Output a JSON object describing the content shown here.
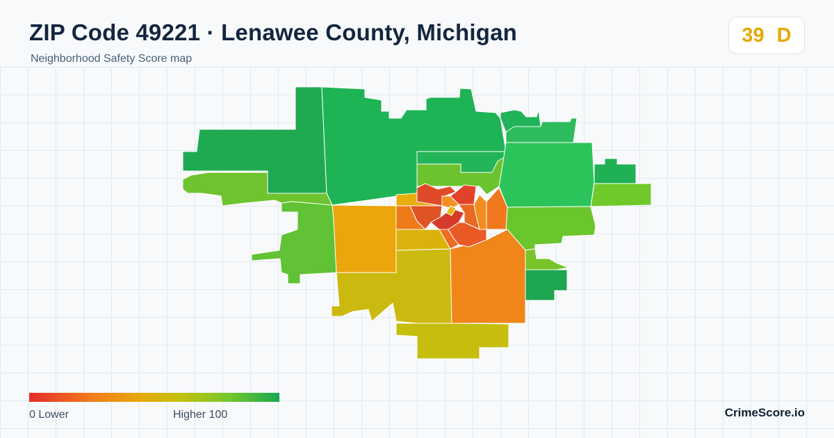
{
  "header": {
    "title": "ZIP Code 49221 · Lenawee County, Michigan",
    "subtitle": "Neighborhood Safety Score map"
  },
  "score": {
    "value": "39",
    "grade": "D",
    "color": "#e5a800"
  },
  "legend": {
    "min_label": "0  Lower",
    "max_label": "Higher  100",
    "colors": [
      "#e32b2b",
      "#f27c1d",
      "#e6a90c",
      "#c3c10e",
      "#76c72c",
      "#17a850"
    ]
  },
  "brand": "CrimeScore.io"
}
